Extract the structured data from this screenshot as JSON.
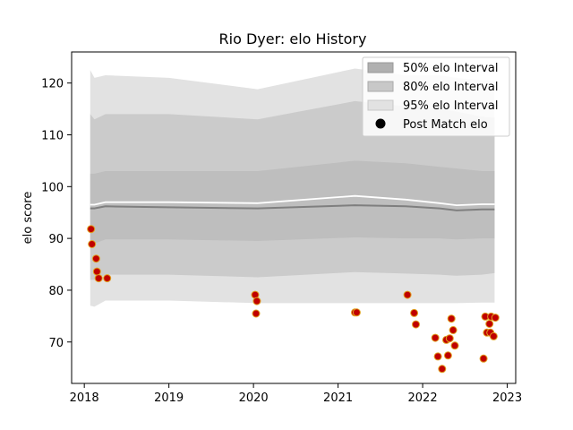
{
  "chart_data": {
    "type": "line",
    "title": "Rio Dyer: elo History",
    "xlabel": "",
    "ylabel": "elo score",
    "xlim": [
      2017.85,
      2023.1
    ],
    "ylim": [
      62,
      126
    ],
    "x_ticks": [
      2018,
      2019,
      2020,
      2021,
      2022,
      2023
    ],
    "x_tick_labels": [
      "2018",
      "2019",
      "2020",
      "2021",
      "2022",
      "2023"
    ],
    "y_ticks": [
      70,
      80,
      90,
      100,
      110,
      120
    ],
    "y_tick_labels": [
      "70",
      "80",
      "90",
      "100",
      "110",
      "120"
    ],
    "grid": false,
    "legend_position": "top-right",
    "legend": [
      {
        "label": "50% elo Interval",
        "kind": "band",
        "color": "#b0b0b0"
      },
      {
        "label": "80% elo Interval",
        "kind": "band",
        "color": "#c8c8c8"
      },
      {
        "label": "95% elo Interval",
        "kind": "band",
        "color": "#e2e2e2"
      },
      {
        "label": "Post Match elo",
        "kind": "marker",
        "color": "#000000"
      }
    ],
    "colors": {
      "band95": "#e2e2e2",
      "band80": "#cbcbcb",
      "band50": "#bebebe",
      "median_line": "#7f7f7f",
      "mean_line": "#ffffff",
      "marker_fill": "#c00000",
      "marker_edge": "#e0a020"
    },
    "bands": {
      "x": [
        2018.07,
        2018.12,
        2018.25,
        2019.0,
        2020.05,
        2021.2,
        2021.8,
        2022.2,
        2022.4,
        2022.7,
        2022.85
      ],
      "p95_low": [
        77.0,
        76.8,
        78.0,
        78.0,
        77.5,
        77.5,
        77.5,
        77.5,
        77.5,
        77.6,
        77.6
      ],
      "p95_high": [
        122.5,
        121.0,
        121.5,
        121.0,
        118.8,
        122.8,
        121.5,
        121.5,
        121.0,
        120.5,
        120.5
      ],
      "p80_low": [
        82.0,
        82.0,
        83.0,
        83.0,
        82.5,
        83.5,
        83.2,
        83.0,
        82.8,
        83.0,
        83.3
      ],
      "p80_high": [
        114.0,
        113.0,
        114.0,
        114.0,
        113.0,
        116.5,
        115.5,
        115.0,
        114.5,
        113.5,
        113.3
      ],
      "p50_low": [
        89.0,
        89.0,
        89.8,
        89.8,
        89.5,
        90.2,
        90.0,
        90.0,
        89.8,
        90.0,
        90.0
      ],
      "p50_high": [
        102.5,
        102.5,
        103.0,
        103.0,
        103.0,
        105.0,
        104.5,
        103.8,
        103.5,
        103.0,
        103.0
      ],
      "median": [
        95.8,
        95.8,
        96.2,
        96.0,
        95.8,
        96.4,
        96.2,
        95.8,
        95.4,
        95.6,
        95.6
      ],
      "mean": [
        96.5,
        96.5,
        97.0,
        97.0,
        96.8,
        98.2,
        97.5,
        96.8,
        96.4,
        96.6,
        96.6
      ]
    },
    "series": [
      {
        "name": "Post Match elo",
        "x": [
          2018.08,
          2018.09,
          2018.14,
          2018.15,
          2018.17,
          2018.27,
          2020.02,
          2020.04,
          2020.03,
          2021.2,
          2021.22,
          2021.82,
          2021.9,
          2021.92,
          2022.15,
          2022.18,
          2022.23,
          2022.28,
          2022.3,
          2022.32,
          2022.34,
          2022.36,
          2022.38,
          2022.72,
          2022.74,
          2022.76,
          2022.79,
          2022.8,
          2022.81,
          2022.84,
          2022.86
        ],
        "y": [
          91.8,
          88.9,
          86.1,
          83.6,
          82.3,
          82.3,
          79.1,
          77.9,
          75.5,
          75.7,
          75.7,
          79.1,
          75.6,
          73.4,
          70.8,
          67.2,
          64.8,
          70.4,
          67.4,
          70.7,
          74.5,
          72.3,
          69.3,
          66.8,
          74.9,
          71.8,
          73.5,
          71.8,
          74.9,
          71.1,
          74.7
        ]
      }
    ]
  }
}
